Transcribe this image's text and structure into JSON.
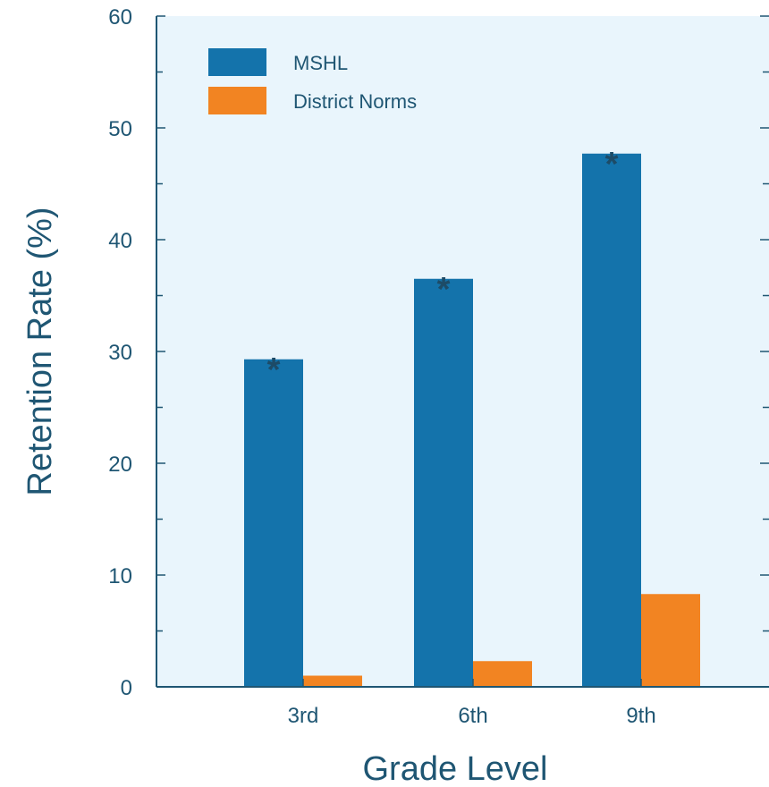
{
  "chart_data": {
    "type": "bar",
    "title": "",
    "xlabel": "Grade Level",
    "ylabel": "Retention Rate (%)",
    "categories": [
      "3rd",
      "6th",
      "9th"
    ],
    "series": [
      {
        "name": "MSHL",
        "values": [
          29.3,
          36.5,
          47.7
        ],
        "color": "#1473ab",
        "significance": [
          "*",
          "*",
          "*"
        ]
      },
      {
        "name": "District Norms",
        "values": [
          1.0,
          2.3,
          8.3
        ],
        "color": "#f28422",
        "significance": [
          "",
          "",
          ""
        ]
      }
    ],
    "ylim": [
      0,
      60
    ],
    "yticks": [
      0,
      10,
      20,
      30,
      40,
      50,
      60
    ],
    "y_minor_step": 5,
    "grid": false,
    "legend_position": "top-left",
    "colors": {
      "plot_background": "#e9f5fc",
      "axis": "#1f5673",
      "text": "#1f5673",
      "star": "#1d4b67"
    }
  }
}
